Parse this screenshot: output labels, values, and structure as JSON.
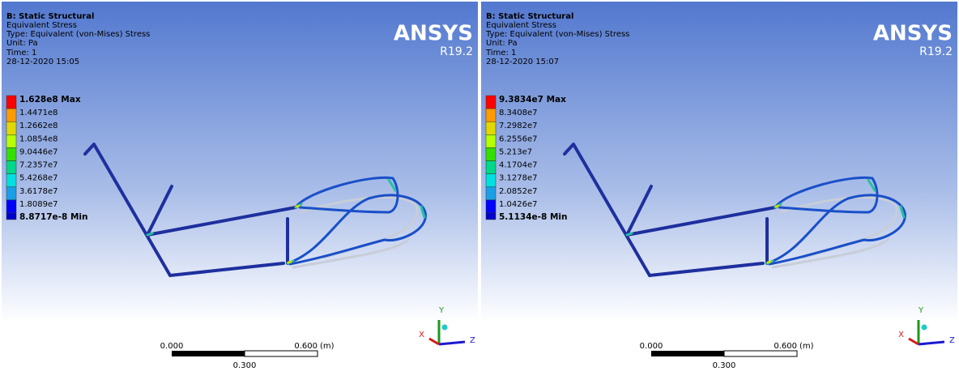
{
  "panels": [
    {
      "title": "B: Static Structural",
      "result": "Equivalent Stress",
      "result_type": "Type: Equivalent (von-Mises) Stress",
      "unit": "Unit: Pa",
      "time": "Time: 1",
      "timestamp": "28-12-2020 15:05",
      "logo": "ANSYS",
      "version": "R19.2",
      "legend": [
        "1.628e8 Max",
        "1.4471e8",
        "1.2662e8",
        "1.0854e8",
        "9.0446e7",
        "7.2357e7",
        "5.4268e7",
        "3.6178e7",
        "1.8089e7",
        "8.8717e-8 Min"
      ],
      "scale": {
        "start": "0.000",
        "end": "0.600",
        "unit": "(m)",
        "mid": "0.300"
      },
      "axes": {
        "y": "Y",
        "x": "X",
        "z": "Z"
      }
    },
    {
      "title": "B: Static Structural",
      "result": "Equivalent Stress",
      "result_type": "Type: Equivalent (von-Mises) Stress",
      "unit": "Unit: Pa",
      "time": "Time: 1",
      "timestamp": "28-12-2020 15:07",
      "logo": "ANSYS",
      "version": "R19.2",
      "legend": [
        "9.3834e7 Max",
        "8.3408e7",
        "7.2982e7",
        "6.2556e7",
        "5.213e7",
        "4.1704e7",
        "3.1278e7",
        "2.0852e7",
        "1.0426e7",
        "5.1134e-8 Min"
      ],
      "scale": {
        "start": "0.000",
        "end": "0.600",
        "unit": "(m)",
        "mid": "0.300"
      },
      "axes": {
        "y": "Y",
        "x": "X",
        "z": "Z"
      }
    }
  ]
}
